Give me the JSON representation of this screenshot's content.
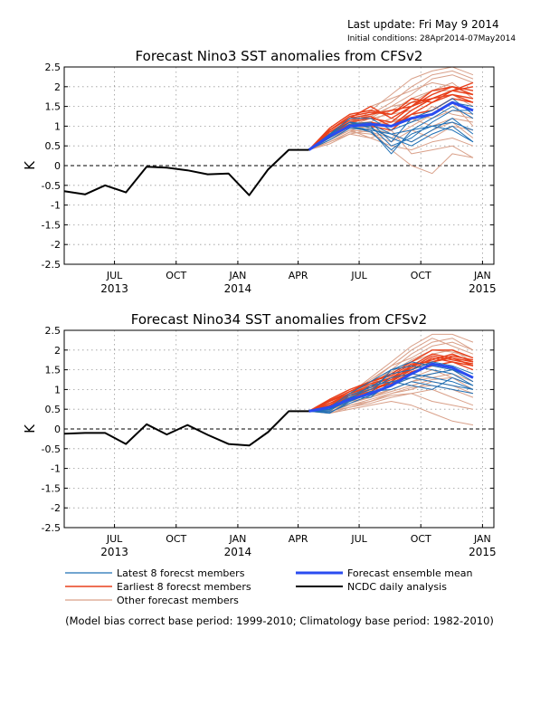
{
  "header": {
    "last_update": "Last update: Fri May 9 2014",
    "initial_conditions": "Initial conditions: 28Apr2014-07May2014"
  },
  "footnote": "(Model bias correct base period: 1999-2010; Climatology base period: 1982-2010)",
  "legend": {
    "latest": "Latest 8 forecst members",
    "earliest": "Earliest 8 forecst members",
    "other": "Other forecast members",
    "mean": "Forecast ensemble mean",
    "ncdc": "NCDC daily analysis"
  },
  "colors": {
    "latest": "#1e6fb5",
    "earliest": "#e8401c",
    "other": "#d9a089",
    "mean": "#2a4cf0",
    "ncdc": "#000000",
    "grid": "#9a9a9a"
  },
  "chart_data": [
    {
      "type": "line",
      "title": "Forecast Nino3 SST anomalies from CFSv2",
      "ylabel": "K",
      "ylim": [
        -2.5,
        2.5
      ],
      "yticks": [
        2.5,
        2,
        1.5,
        1,
        0.5,
        0,
        -0.5,
        -1,
        -1.5,
        -2,
        -2.5
      ],
      "ytick_labels": [
        "2.5",
        "2",
        "1.5",
        "1",
        "0.5",
        "0",
        "-0.5",
        "-1",
        "-1.5",
        "-2",
        "-2.5"
      ],
      "xlim": [
        "2013-05-01",
        "2015-02-01"
      ],
      "xticks": [
        {
          "date": "2013-07-15",
          "month": "JUL",
          "year": "2013"
        },
        {
          "date": "2013-10-15",
          "month": "OCT",
          "year": ""
        },
        {
          "date": "2014-01-15",
          "month": "JAN",
          "year": "2014"
        },
        {
          "date": "2014-04-15",
          "month": "APR",
          "year": ""
        },
        {
          "date": "2014-07-15",
          "month": "JUL",
          "year": ""
        },
        {
          "date": "2014-10-15",
          "month": "OCT",
          "year": ""
        },
        {
          "date": "2015-01-15",
          "month": "JAN",
          "year": "2015"
        }
      ],
      "grid": true,
      "observed": {
        "name": "NCDC daily analysis",
        "x": [
          "2013-05-01",
          "2013-06-01",
          "2013-07-01",
          "2013-08-01",
          "2013-09-01",
          "2013-10-01",
          "2013-11-01",
          "2013-12-01",
          "2014-01-01",
          "2014-02-01",
          "2014-03-01",
          "2014-04-01",
          "2014-05-01"
        ],
        "y": [
          -0.65,
          -0.73,
          -0.5,
          -0.68,
          -0.03,
          -0.05,
          -0.12,
          -0.22,
          -0.2,
          -0.75,
          -0.1,
          0.4,
          0.4
        ]
      },
      "forecast_months": [
        "2014-05-01",
        "2014-06-01",
        "2014-07-01",
        "2014-08-01",
        "2014-09-01",
        "2014-10-01",
        "2014-11-01",
        "2014-12-01",
        "2015-01-01"
      ],
      "ensemble_mean": [
        0.4,
        0.75,
        1.0,
        1.05,
        1.0,
        1.2,
        1.3,
        1.6,
        1.4
      ],
      "latest_members": [
        [
          0.4,
          0.7,
          1.0,
          0.9,
          0.8,
          0.6,
          0.9,
          1.2,
          0.8
        ],
        [
          0.4,
          0.8,
          1.1,
          0.95,
          0.7,
          0.5,
          0.8,
          1.0,
          0.6
        ],
        [
          0.4,
          0.75,
          1.0,
          1.0,
          0.5,
          0.7,
          1.1,
          1.4,
          1.4
        ],
        [
          0.4,
          0.8,
          1.2,
          1.2,
          0.9,
          1.1,
          1.3,
          1.6,
          1.5
        ],
        [
          0.4,
          0.65,
          0.95,
          0.9,
          0.3,
          0.9,
          1.0,
          0.9,
          0.6
        ],
        [
          0.4,
          0.7,
          1.05,
          1.1,
          0.6,
          1.2,
          1.4,
          1.7,
          1.3
        ],
        [
          0.4,
          0.78,
          1.1,
          1.05,
          0.8,
          0.9,
          1.2,
          1.5,
          1.2
        ],
        [
          0.4,
          0.72,
          1.0,
          0.85,
          0.4,
          0.8,
          1.0,
          1.1,
          0.9
        ]
      ],
      "earliest_members": [
        [
          0.4,
          0.9,
          1.2,
          1.3,
          1.4,
          1.5,
          1.7,
          1.9,
          1.8
        ],
        [
          0.4,
          0.85,
          1.1,
          1.2,
          1.1,
          1.5,
          1.8,
          2.0,
          1.9
        ],
        [
          0.4,
          0.95,
          1.3,
          1.4,
          1.3,
          1.7,
          1.6,
          1.9,
          2.1
        ],
        [
          0.4,
          0.8,
          1.1,
          1.0,
          0.9,
          1.3,
          1.6,
          1.8,
          1.7
        ],
        [
          0.4,
          0.9,
          1.2,
          1.5,
          1.2,
          1.5,
          1.9,
          2.0,
          1.8
        ],
        [
          0.4,
          0.85,
          1.15,
          1.25,
          1.0,
          1.4,
          1.7,
          1.9,
          2.0
        ],
        [
          0.4,
          0.9,
          1.25,
          1.35,
          1.3,
          1.6,
          1.7,
          1.8,
          1.6
        ],
        [
          0.4,
          0.8,
          1.05,
          1.1,
          1.0,
          1.3,
          1.4,
          1.7,
          1.6
        ]
      ],
      "other_members": [
        [
          0.4,
          0.7,
          1.0,
          1.4,
          1.8,
          2.2,
          2.4,
          2.5,
          2.3
        ],
        [
          0.4,
          0.6,
          0.8,
          0.9,
          0.4,
          0.0,
          -0.2,
          0.3,
          0.2
        ],
        [
          0.4,
          0.7,
          1.1,
          1.3,
          1.6,
          2.0,
          2.3,
          2.4,
          2.2
        ],
        [
          0.4,
          0.65,
          0.9,
          0.7,
          0.5,
          0.4,
          0.6,
          0.7,
          0.5
        ],
        [
          0.4,
          0.8,
          1.2,
          1.5,
          1.7,
          1.9,
          2.1,
          2.0,
          1.9
        ],
        [
          0.4,
          0.6,
          0.85,
          0.8,
          0.6,
          0.9,
          0.7,
          1.0,
          0.9
        ],
        [
          0.4,
          0.7,
          1.0,
          1.1,
          1.4,
          1.7,
          1.9,
          2.1,
          1.7
        ],
        [
          0.4,
          0.75,
          1.05,
          0.95,
          1.1,
          1.3,
          1.2,
          1.4,
          1.3
        ],
        [
          0.4,
          0.55,
          0.8,
          0.7,
          0.9,
          0.3,
          0.4,
          0.5,
          0.2
        ],
        [
          0.4,
          0.8,
          1.1,
          1.2,
          1.5,
          1.8,
          2.2,
          2.3,
          2.1
        ],
        [
          0.4,
          0.7,
          0.95,
          1.0,
          1.2,
          1.1,
          1.5,
          1.3,
          1.2
        ],
        [
          0.4,
          0.65,
          0.9,
          0.85,
          0.7,
          1.0,
          1.3,
          1.6,
          1.0
        ],
        [
          0.4,
          0.75,
          1.0,
          1.2,
          1.3,
          1.4,
          1.7,
          1.8,
          1.5
        ],
        [
          0.4,
          0.6,
          0.85,
          0.95,
          0.8,
          0.6,
          0.9,
          1.1,
          0.7
        ],
        [
          0.4,
          0.7,
          1.05,
          1.25,
          1.5,
          1.6,
          1.9,
          1.9,
          1.8
        ],
        [
          0.4,
          0.65,
          0.9,
          1.0,
          1.1,
          1.2,
          1.0,
          1.2,
          1.1
        ]
      ]
    },
    {
      "type": "line",
      "title": "Forecast Nino34 SST anomalies from CFSv2",
      "ylabel": "K",
      "ylim": [
        -2.5,
        2.5
      ],
      "yticks": [
        2.5,
        2,
        1.5,
        1,
        0.5,
        0,
        -0.5,
        -1,
        -1.5,
        -2,
        -2.5
      ],
      "ytick_labels": [
        "2.5",
        "2",
        "1.5",
        "1",
        "0.5",
        "0",
        "-0.5",
        "-1",
        "-1.5",
        "-2",
        "-2.5"
      ],
      "xlim": [
        "2013-05-01",
        "2015-02-01"
      ],
      "xticks": [
        {
          "date": "2013-07-15",
          "month": "JUL",
          "year": "2013"
        },
        {
          "date": "2013-10-15",
          "month": "OCT",
          "year": ""
        },
        {
          "date": "2014-01-15",
          "month": "JAN",
          "year": "2014"
        },
        {
          "date": "2014-04-15",
          "month": "APR",
          "year": ""
        },
        {
          "date": "2014-07-15",
          "month": "JUL",
          "year": ""
        },
        {
          "date": "2014-10-15",
          "month": "OCT",
          "year": ""
        },
        {
          "date": "2015-01-15",
          "month": "JAN",
          "year": "2015"
        }
      ],
      "grid": true,
      "observed": {
        "name": "NCDC daily analysis",
        "x": [
          "2013-05-01",
          "2013-06-01",
          "2013-07-01",
          "2013-08-01",
          "2013-09-01",
          "2013-10-01",
          "2013-11-01",
          "2013-12-01",
          "2014-01-01",
          "2014-02-01",
          "2014-03-01",
          "2014-04-01",
          "2014-05-01"
        ],
        "y": [
          -0.12,
          -0.1,
          -0.1,
          -0.38,
          0.12,
          -0.14,
          0.1,
          -0.15,
          -0.38,
          -0.42,
          -0.08,
          0.45,
          0.45
        ]
      },
      "forecast_months": [
        "2014-05-01",
        "2014-06-01",
        "2014-07-01",
        "2014-08-01",
        "2014-09-01",
        "2014-10-01",
        "2014-11-01",
        "2014-12-01",
        "2015-01-01"
      ],
      "ensemble_mean": [
        0.45,
        0.55,
        0.75,
        0.9,
        1.1,
        1.4,
        1.65,
        1.55,
        1.3
      ],
      "latest_members": [
        [
          0.45,
          0.5,
          0.8,
          1.0,
          1.3,
          1.4,
          1.3,
          1.2,
          1.0
        ],
        [
          0.45,
          0.4,
          0.7,
          0.9,
          1.5,
          1.6,
          1.5,
          1.4,
          1.1
        ],
        [
          0.45,
          0.5,
          0.75,
          1.1,
          1.2,
          1.1,
          1.0,
          1.3,
          1.1
        ],
        [
          0.45,
          0.45,
          0.8,
          0.8,
          1.2,
          1.3,
          1.4,
          1.5,
          1.3
        ],
        [
          0.45,
          0.55,
          0.9,
          1.2,
          1.5,
          1.7,
          1.6,
          1.5,
          1.2
        ],
        [
          0.45,
          0.5,
          0.7,
          0.95,
          1.0,
          1.2,
          1.1,
          1.0,
          0.9
        ],
        [
          0.45,
          0.48,
          0.85,
          1.05,
          1.4,
          1.5,
          1.7,
          1.6,
          1.4
        ],
        [
          0.45,
          0.42,
          0.65,
          0.85,
          1.1,
          1.3,
          1.2,
          1.1,
          1.0
        ]
      ],
      "earliest_members": [
        [
          0.45,
          0.7,
          0.9,
          1.1,
          1.3,
          1.5,
          1.7,
          1.8,
          1.7
        ],
        [
          0.45,
          0.65,
          0.85,
          1.0,
          1.2,
          1.6,
          1.9,
          1.8,
          1.6
        ],
        [
          0.45,
          0.75,
          1.0,
          1.2,
          1.4,
          1.7,
          2.0,
          2.0,
          1.8
        ],
        [
          0.45,
          0.6,
          0.8,
          0.95,
          1.2,
          1.5,
          1.8,
          1.7,
          1.5
        ],
        [
          0.45,
          0.7,
          0.95,
          1.15,
          1.3,
          1.6,
          1.75,
          1.9,
          1.7
        ],
        [
          0.45,
          0.65,
          0.9,
          1.05,
          1.25,
          1.55,
          1.85,
          1.75,
          1.65
        ],
        [
          0.45,
          0.72,
          0.95,
          1.2,
          1.35,
          1.65,
          1.7,
          1.85,
          1.75
        ],
        [
          0.45,
          0.6,
          0.85,
          1.0,
          1.15,
          1.45,
          1.6,
          1.7,
          1.6
        ]
      ],
      "other_members": [
        [
          0.45,
          0.6,
          0.9,
          1.3,
          1.7,
          2.1,
          2.4,
          2.4,
          2.2
        ],
        [
          0.45,
          0.4,
          0.5,
          0.6,
          0.7,
          0.6,
          0.4,
          0.2,
          0.1
        ],
        [
          0.45,
          0.55,
          0.8,
          1.1,
          1.5,
          1.9,
          2.2,
          2.3,
          2.0
        ],
        [
          0.45,
          0.5,
          0.6,
          0.7,
          0.9,
          1.0,
          1.2,
          1.1,
          0.9
        ],
        [
          0.45,
          0.6,
          0.85,
          1.2,
          1.6,
          2.0,
          2.3,
          2.1,
          1.9
        ],
        [
          0.45,
          0.45,
          0.55,
          0.65,
          0.8,
          0.9,
          0.7,
          0.6,
          0.5
        ],
        [
          0.45,
          0.55,
          0.75,
          1.0,
          1.3,
          1.6,
          1.9,
          2.0,
          1.7
        ],
        [
          0.45,
          0.5,
          0.7,
          0.8,
          1.0,
          1.2,
          1.4,
          1.5,
          1.2
        ],
        [
          0.45,
          0.4,
          0.55,
          0.7,
          0.85,
          0.9,
          1.0,
          0.8,
          0.6
        ],
        [
          0.45,
          0.6,
          0.9,
          1.25,
          1.6,
          1.8,
          2.1,
          2.2,
          2.0
        ],
        [
          0.45,
          0.5,
          0.7,
          0.9,
          1.1,
          1.3,
          1.5,
          1.3,
          1.1
        ],
        [
          0.45,
          0.55,
          0.65,
          0.85,
          1.0,
          1.2,
          1.3,
          1.4,
          1.2
        ],
        [
          0.45,
          0.6,
          0.8,
          1.05,
          1.4,
          1.7,
          1.9,
          1.8,
          1.6
        ],
        [
          0.45,
          0.45,
          0.6,
          0.75,
          0.9,
          1.05,
          1.1,
          1.0,
          0.8
        ],
        [
          0.45,
          0.55,
          0.85,
          1.15,
          1.45,
          1.75,
          2.0,
          1.95,
          1.8
        ],
        [
          0.45,
          0.5,
          0.65,
          0.8,
          0.95,
          1.1,
          1.25,
          1.3,
          1.0
        ]
      ]
    }
  ]
}
